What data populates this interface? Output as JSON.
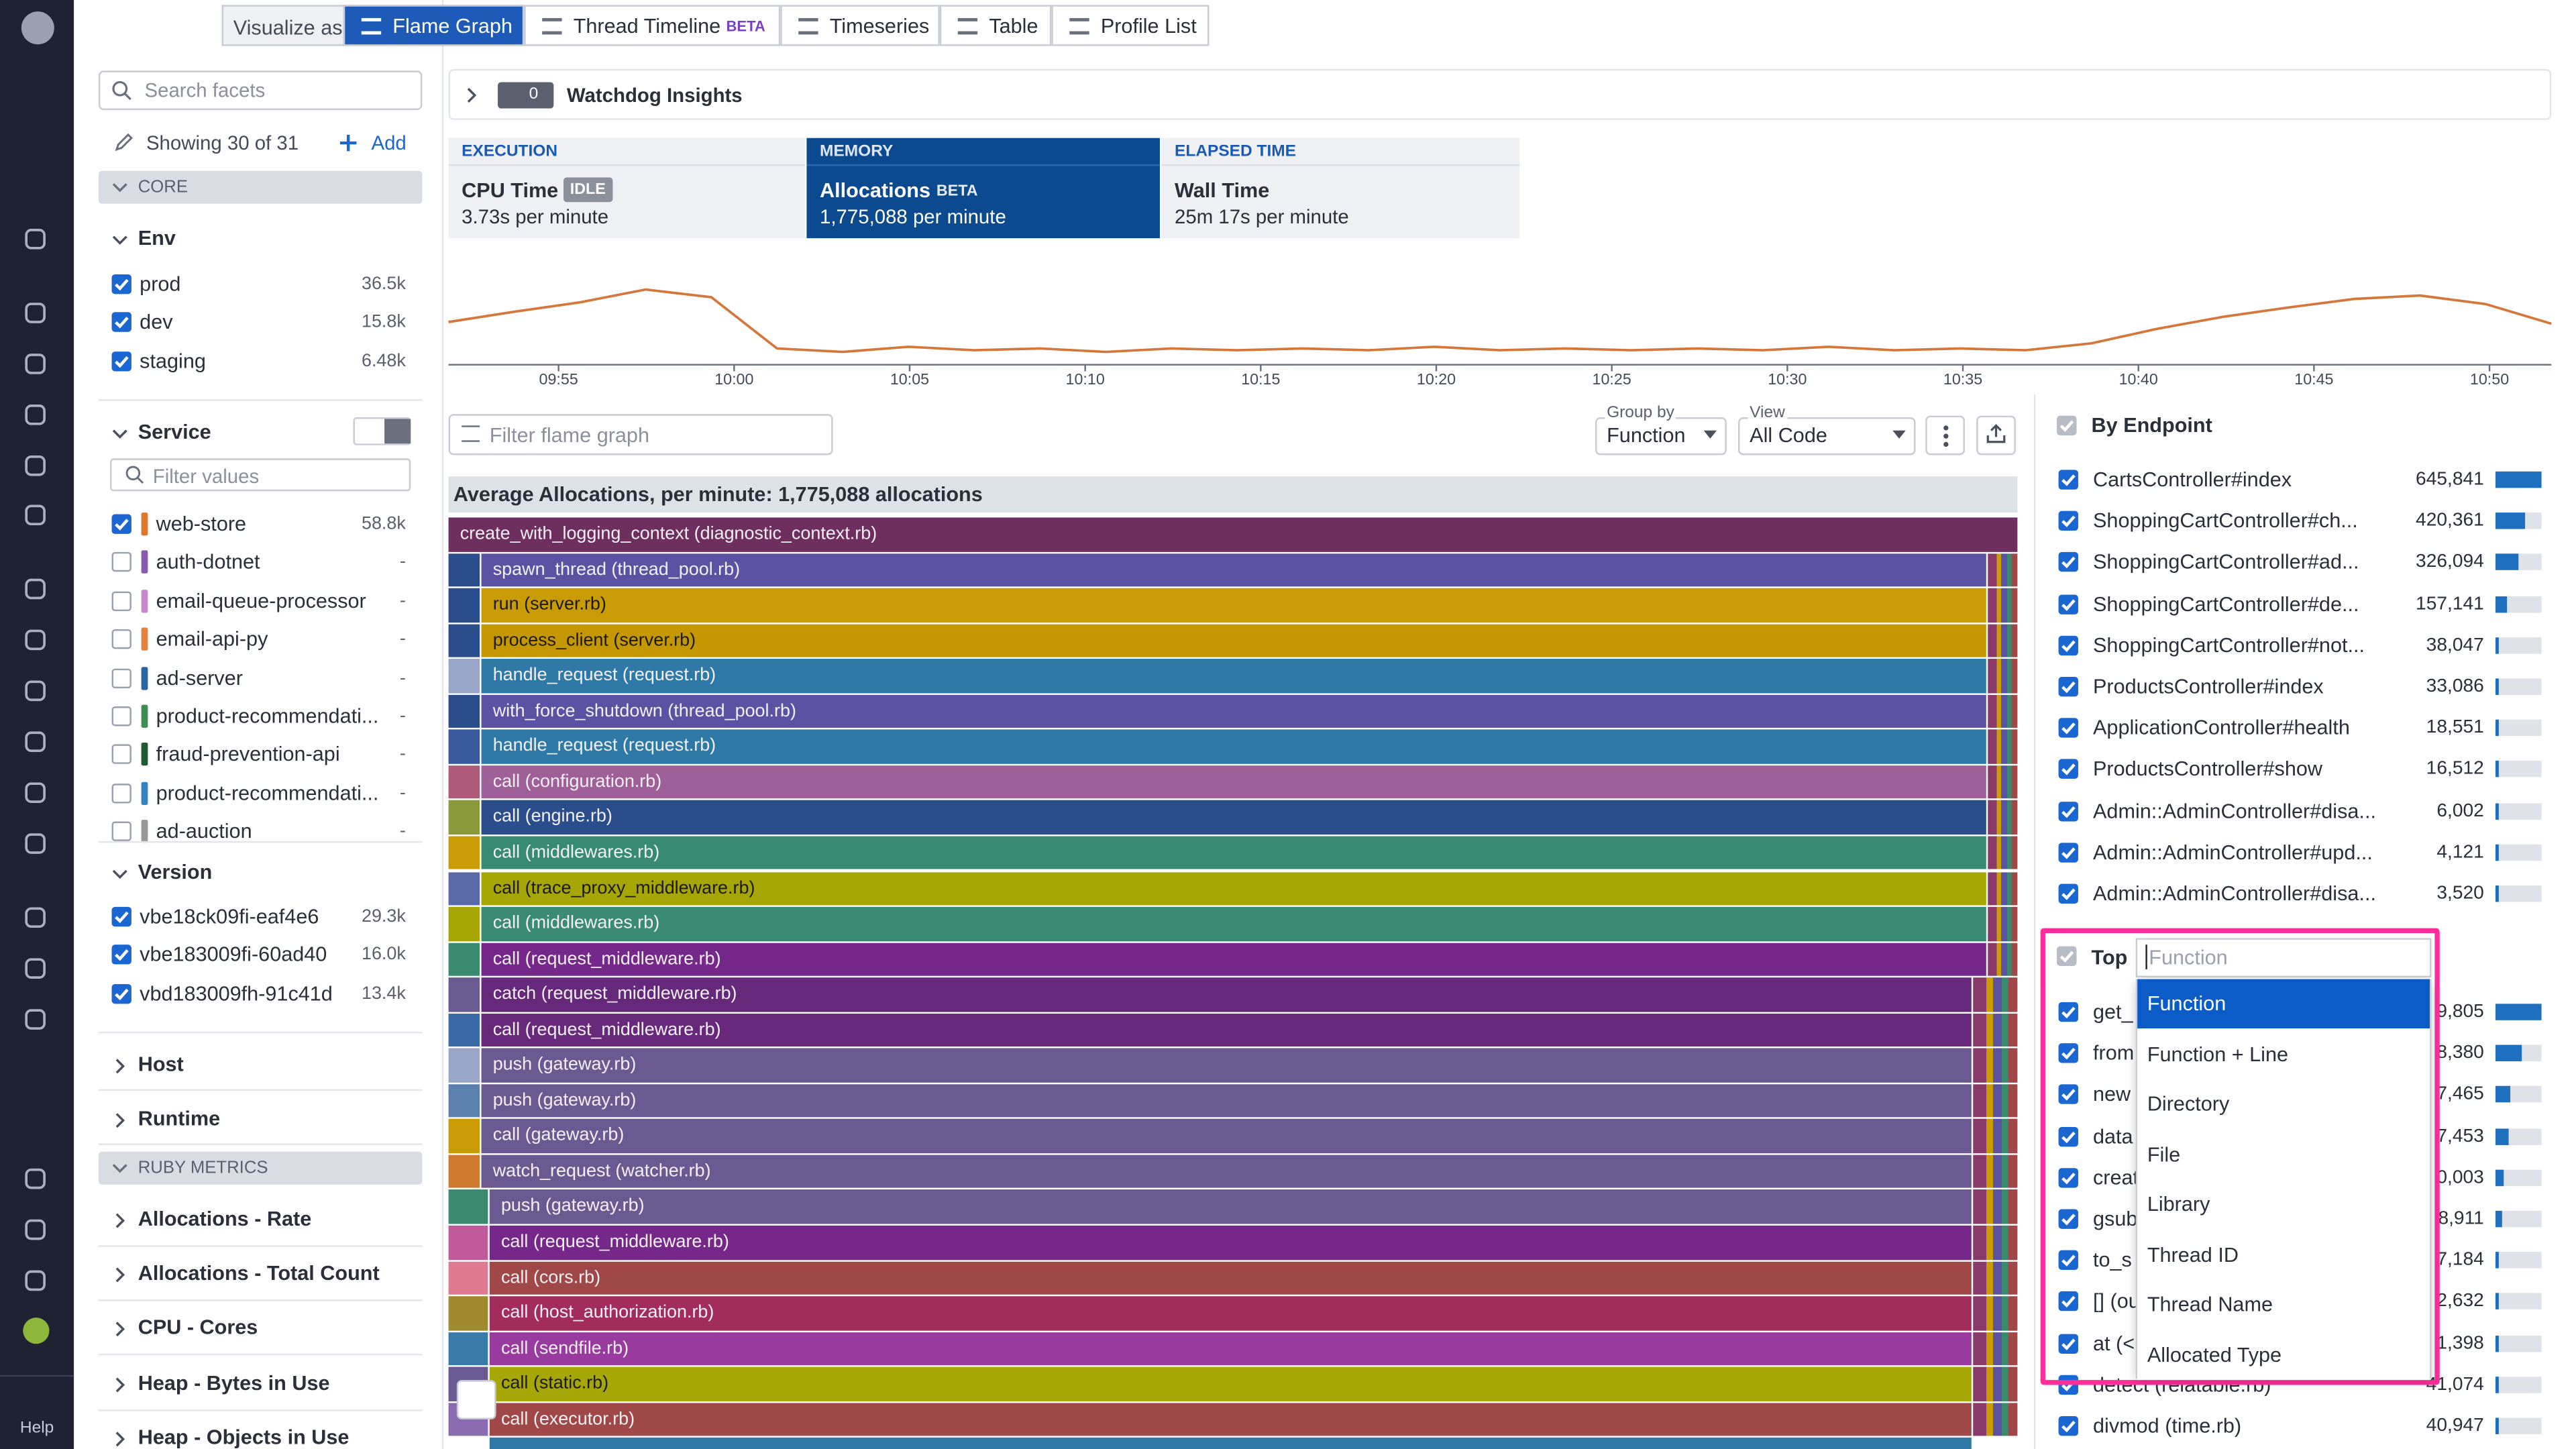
{
  "nav": {
    "help": "Help"
  },
  "toolbar": {
    "label": "Visualize as",
    "tabs": [
      {
        "name": "Flame Graph",
        "active": true
      },
      {
        "name": "Thread Timeline",
        "badge": "BETA"
      },
      {
        "name": "Timeseries"
      },
      {
        "name": "Table"
      },
      {
        "name": "Profile List"
      }
    ]
  },
  "facets": {
    "search_placeholder": "Search facets",
    "showing": "Showing 30 of 31",
    "add": "Add",
    "core_header": "CORE",
    "env": {
      "title": "Env",
      "items": [
        {
          "name": "prod",
          "count": "36.5k",
          "checked": true
        },
        {
          "name": "dev",
          "count": "15.8k",
          "checked": true
        },
        {
          "name": "staging",
          "count": "6.48k",
          "checked": true
        }
      ]
    },
    "service": {
      "title": "Service",
      "filter_placeholder": "Filter values",
      "items": [
        {
          "name": "web-store",
          "count": "58.8k",
          "checked": true,
          "color": "#e0782a"
        },
        {
          "name": "auth-dotnet",
          "count": "-",
          "checked": false,
          "color": "#8a5ab0"
        },
        {
          "name": "email-queue-processor",
          "count": "-",
          "checked": false,
          "color": "#c987c9"
        },
        {
          "name": "email-api-py",
          "count": "-",
          "checked": false,
          "color": "#e3823e"
        },
        {
          "name": "ad-server",
          "count": "-",
          "checked": false,
          "color": "#2a64a6"
        },
        {
          "name": "product-recommendati...",
          "count": "-",
          "checked": false,
          "color": "#3e8e52"
        },
        {
          "name": "fraud-prevention-api",
          "count": "-",
          "checked": false,
          "color": "#1f5a30"
        },
        {
          "name": "product-recommendati...",
          "count": "-",
          "checked": false,
          "color": "#3484c4"
        },
        {
          "name": "ad-auction",
          "count": "-",
          "checked": false,
          "color": "#999999"
        }
      ]
    },
    "version": {
      "title": "Version",
      "items": [
        {
          "name": "vbe18ck09fi-eaf4e6",
          "count": "29.3k",
          "checked": true
        },
        {
          "name": "vbe183009fi-60ad40",
          "count": "16.0k",
          "checked": true
        },
        {
          "name": "vbd183009fh-91c41d",
          "count": "13.4k",
          "checked": true
        }
      ]
    },
    "collapsed_core": [
      "Host",
      "Runtime"
    ],
    "ruby_header": "RUBY METRICS",
    "collapsed_ruby": [
      "Allocations - Rate",
      "Allocations - Total Count",
      "CPU - Cores",
      "Heap - Bytes in Use",
      "Heap - Objects in Use"
    ]
  },
  "watchdog": {
    "count": "0",
    "label": "Watchdog Insights"
  },
  "metrics": [
    {
      "category": "EXECUTION",
      "name": "CPU Time",
      "badge": "IDLE",
      "value": "3.73s per minute"
    },
    {
      "category": "MEMORY",
      "name": "Allocations",
      "badge": "BETA",
      "value": "1,775,088 per minute",
      "active": true
    },
    {
      "category": "ELAPSED TIME",
      "name": "Wall Time",
      "value": "25m 17s per minute"
    }
  ],
  "timeseries": {
    "color": "#d5773a",
    "ylim": [
      0,
      100
    ],
    "values": [
      50,
      62,
      73,
      88,
      79,
      19,
      15,
      21,
      17,
      19,
      15,
      19,
      17,
      19,
      17,
      21,
      17,
      19,
      17,
      19,
      17,
      21,
      17,
      19,
      17,
      25,
      42,
      56,
      67,
      77,
      81,
      71,
      48
    ],
    "xticks": [
      "09:55",
      "10:00",
      "10:05",
      "10:10",
      "10:15",
      "10:20",
      "10:25",
      "10:30",
      "10:35",
      "10:40",
      "10:45",
      "10:50"
    ]
  },
  "flame": {
    "filter_placeholder": "Filter flame graph",
    "group_by_label": "Group by",
    "group_by": "Function",
    "view_label": "View",
    "view": "All Code",
    "title": "Average Allocations, per minute: 1,775,088 allocations",
    "frames": [
      {
        "label": "create_with_logging_context (diagnostic_context.rb)",
        "color": "#6e2f5e"
      },
      {
        "label": "spawn_thread (thread_pool.rb)",
        "color": "#5b52a3"
      },
      {
        "label": "run (server.rb)",
        "color": "#c99c05"
      },
      {
        "label": "process_client (server.rb)",
        "color": "#c59700"
      },
      {
        "label": "handle_request (request.rb)",
        "color": "#2f79a6"
      },
      {
        "label": "with_force_shutdown (thread_pool.rb)",
        "color": "#5b52a3"
      },
      {
        "label": "handle_request (request.rb)",
        "color": "#2f79a6"
      },
      {
        "label": "call (configuration.rb)",
        "color": "#9f5f98"
      },
      {
        "label": "call (engine.rb)",
        "color": "#2b4d8c"
      },
      {
        "label": "call (middlewares.rb)",
        "color": "#388a70"
      },
      {
        "label": "call (trace_proxy_middleware.rb)",
        "color": "#a6a606"
      },
      {
        "label": "call (middlewares.rb)",
        "color": "#3a8b72"
      },
      {
        "label": "call (request_middleware.rb)",
        "color": "#76288a"
      },
      {
        "label": "catch (request_middleware.rb)",
        "color": "#66287a"
      },
      {
        "label": "call (request_middleware.rb)",
        "color": "#68287c"
      },
      {
        "label": "push (gateway.rb)",
        "color": "#6b5a92"
      },
      {
        "label": "push (gateway.rb)",
        "color": "#6b5a92"
      },
      {
        "label": "call (gateway.rb)",
        "color": "#6b5a92"
      },
      {
        "label": "watch_request (watcher.rb)",
        "color": "#6b5a92"
      },
      {
        "label": "push (gateway.rb)",
        "color": "#6b5a92"
      },
      {
        "label": "call (request_middleware.rb)",
        "color": "#76288a"
      },
      {
        "label": "call (cors.rb)",
        "color": "#a04848"
      },
      {
        "label": "call (host_authorization.rb)",
        "color": "#a22c5c"
      },
      {
        "label": "call (sendfile.rb)",
        "color": "#983a9e"
      },
      {
        "label": "call (static.rb)",
        "color": "#a6a606"
      },
      {
        "label": "call (executor.rb)",
        "color": "#a04848"
      }
    ]
  },
  "endpoints": {
    "title": "By Endpoint",
    "rows": [
      {
        "name": "CartsController#index",
        "value": 645841,
        "label": "645,841"
      },
      {
        "name": "ShoppingCartController#ch...",
        "value": 420361,
        "label": "420,361"
      },
      {
        "name": "ShoppingCartController#ad...",
        "value": 326094,
        "label": "326,094"
      },
      {
        "name": "ShoppingCartController#de...",
        "value": 157141,
        "label": "157,141"
      },
      {
        "name": "ShoppingCartController#not...",
        "value": 38047,
        "label": "38,047"
      },
      {
        "name": "ProductsController#index",
        "value": 33086,
        "label": "33,086"
      },
      {
        "name": "ApplicationController#health",
        "value": 18551,
        "label": "18,551"
      },
      {
        "name": "ProductsController#show",
        "value": 16512,
        "label": "16,512"
      },
      {
        "name": "Admin::AdminController#disa...",
        "value": 6002,
        "label": "6,002"
      },
      {
        "name": "Admin::AdminController#upd...",
        "value": 4121,
        "label": "4,121"
      },
      {
        "name": "Admin::AdminController#disa...",
        "value": 3520,
        "label": "3,520"
      }
    ]
  },
  "top": {
    "title": "Top",
    "input_placeholder": "Function",
    "options": [
      "Function",
      "Function + Line",
      "Directory",
      "File",
      "Library",
      "Thread ID",
      "Thread Name",
      "Allocated Type"
    ],
    "selected": 0,
    "rows": [
      {
        "name": "get_",
        "label": "9,805"
      },
      {
        "name": "from",
        "label": "8,380"
      },
      {
        "name": "new",
        "label": "7,465"
      },
      {
        "name": "data",
        "label": "7,453"
      },
      {
        "name": "creat",
        "label": "0,003"
      },
      {
        "name": "gsub",
        "label": "8,911"
      },
      {
        "name": "to_s",
        "label": "7,184"
      },
      {
        "name": "[] (ou",
        "label": "2,632"
      },
      {
        "name": "at (<",
        "label": "1,398"
      },
      {
        "name": "detect (relatable.rb)",
        "label": "41,074"
      },
      {
        "name": "divmod (time.rb)",
        "label": "40,947"
      }
    ]
  }
}
